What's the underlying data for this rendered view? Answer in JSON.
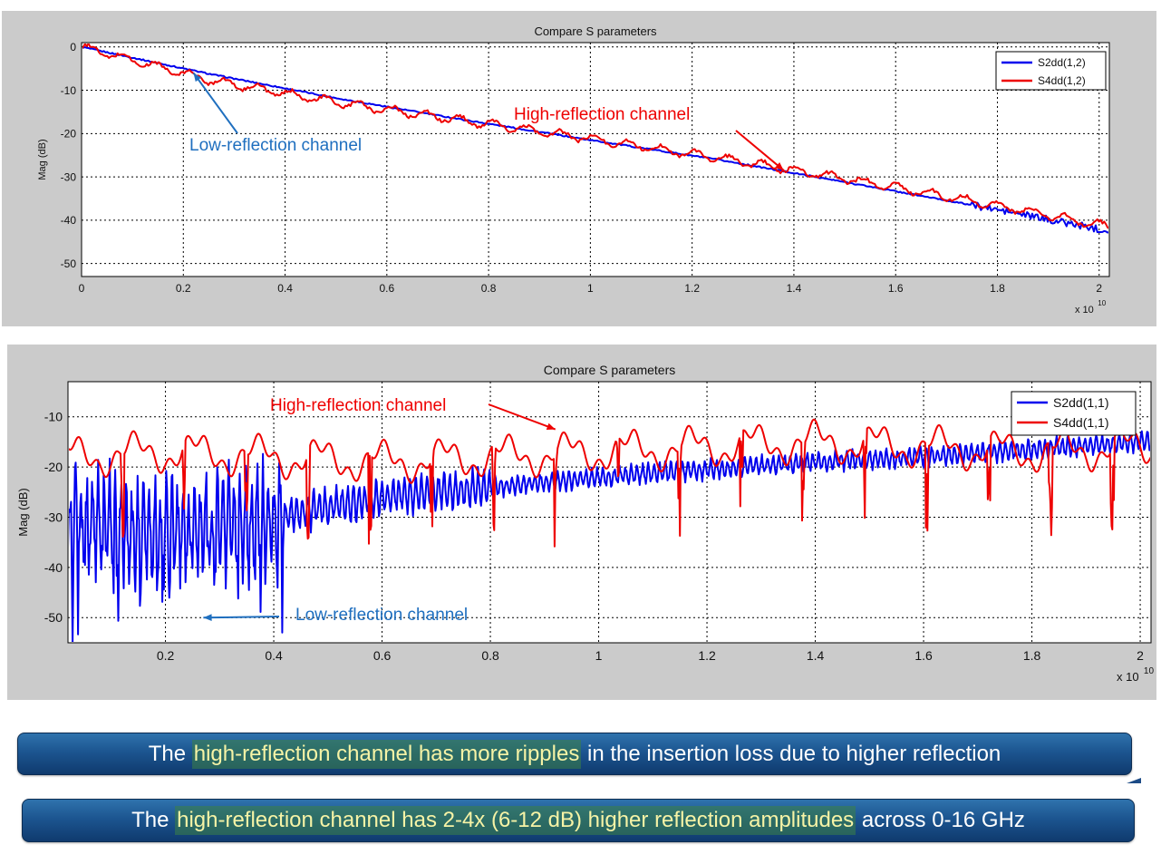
{
  "colors": {
    "blue_series": "#0000ee",
    "red_series": "#ee0000",
    "annotation_blue": "#1f6fbf",
    "annotation_red": "#ee0000",
    "banner_bg": "#1c5590",
    "highlight_text": "#f6f3a6"
  },
  "chart_data": [
    {
      "type": "line",
      "title": "Compare S parameters",
      "xlabel": "",
      "ylabel": "Mag (dB)",
      "x_exponent": "x 10",
      "x_exponent_power": "10",
      "xlim": [
        0,
        2.02
      ],
      "ylim": [
        -53,
        1
      ],
      "xticks": [
        0,
        0.2,
        0.4,
        0.6,
        0.8,
        1,
        1.2,
        1.4,
        1.6,
        1.8,
        2
      ],
      "xtick_labels": [
        "0",
        "0.2",
        "0.4",
        "0.6",
        "0.8",
        "1",
        "1.2",
        "1.4",
        "1.6",
        "1.8",
        "2"
      ],
      "yticks": [
        0,
        -10,
        -20,
        -30,
        -40,
        -50
      ],
      "ytick_labels": [
        "0",
        "-10",
        "-20",
        "-30",
        "-40",
        "-50"
      ],
      "grid": true,
      "legend_position": "top-right",
      "series": [
        {
          "name": "S2dd(1,2)",
          "color": "#0000ee",
          "x": [
            0,
            0.25,
            0.5,
            0.75,
            1.0,
            1.25,
            1.5,
            1.75,
            2.02
          ],
          "values": [
            0,
            -6.2,
            -11.8,
            -16.8,
            -21.5,
            -26.0,
            -31.2,
            -36.5,
            -42.5
          ]
        },
        {
          "name": "S4dd(1,2)",
          "color": "#ee0000",
          "x": [
            0,
            0.25,
            0.5,
            0.75,
            1.0,
            1.25,
            1.5,
            1.75,
            2.02
          ],
          "values": [
            0,
            -7.6,
            -12.8,
            -17.0,
            -21.2,
            -25.6,
            -30.4,
            -35.5,
            -41.5
          ]
        }
      ],
      "annotations": [
        {
          "text": "High-reflection channel",
          "color": "#ee0000",
          "x": 1.38,
          "y": -28.5
        },
        {
          "text": "Low-reflection channel",
          "color": "#1f6fbf",
          "x": 0.22,
          "y": -6.0
        }
      ]
    },
    {
      "type": "line",
      "title": "Compare S parameters",
      "xlabel": "",
      "ylabel": "Mag (dB)",
      "x_exponent": "x 10",
      "x_exponent_power": "10",
      "xlim": [
        0.02,
        2.02
      ],
      "ylim": [
        -55,
        -3
      ],
      "xticks": [
        0.2,
        0.4,
        0.6,
        0.8,
        1,
        1.2,
        1.4,
        1.6,
        1.8,
        2
      ],
      "xtick_labels": [
        "0.2",
        "0.4",
        "0.6",
        "0.8",
        "1",
        "1.2",
        "1.4",
        "1.6",
        "1.8",
        "2"
      ],
      "yticks": [
        -10,
        -20,
        -30,
        -40,
        -50
      ],
      "ytick_labels": [
        "-10",
        "-20",
        "-30",
        "-40",
        "-50"
      ],
      "grid": true,
      "legend_position": "top-right",
      "series": [
        {
          "name": "S2dd(1,1)",
          "color": "#0000ee",
          "x": [
            0.02,
            0.2,
            0.4,
            0.6,
            0.8,
            1.0,
            1.2,
            1.4,
            1.6,
            1.8,
            2.0
          ],
          "values": [
            -30,
            -33,
            -30,
            -26,
            -24,
            -22,
            -20.5,
            -19,
            -18,
            -16.5,
            -15
          ]
        },
        {
          "name": "S4dd(1,1)",
          "color": "#ee0000",
          "x": [
            0.02,
            0.2,
            0.4,
            0.6,
            0.8,
            1.0,
            1.2,
            1.4,
            1.6,
            1.8,
            2.0
          ],
          "values": [
            -18,
            -17,
            -18,
            -19,
            -18,
            -17,
            -16,
            -15,
            -16,
            -17,
            -16
          ]
        }
      ],
      "annotations": [
        {
          "text": "High-reflection channel",
          "color": "#ee0000",
          "x": 0.92,
          "y": -12.5
        },
        {
          "text": "Low-reflection channel",
          "color": "#1f6fbf",
          "x": 0.27,
          "y": -50
        }
      ]
    }
  ],
  "banners": [
    {
      "pre": "The ",
      "highlight": "high-reflection channel has more ripples",
      "post": " in the insertion loss due to higher reflection"
    },
    {
      "pre": "The ",
      "highlight": "high-reflection channel has 2-4x (6-12 dB) higher reflection amplitudes",
      "post": " across 0-16 GHz"
    }
  ]
}
